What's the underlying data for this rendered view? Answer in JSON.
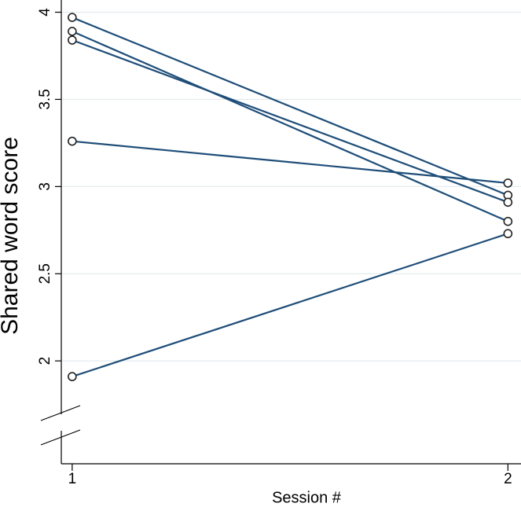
{
  "chart_data": {
    "type": "line",
    "x": [
      1,
      2
    ],
    "xlabel": "Session #",
    "ylabel": "Shared word score",
    "color": "#1f4e79",
    "series": [
      {
        "values": [
          3.97,
          2.95
        ]
      },
      {
        "values": [
          3.89,
          2.8
        ]
      },
      {
        "values": [
          3.84,
          2.91
        ]
      },
      {
        "values": [
          3.26,
          3.02
        ]
      },
      {
        "values": [
          1.91,
          2.73
        ]
      }
    ],
    "xlim": [
      0.975,
      2.03
    ],
    "xticks": [
      1,
      2
    ],
    "ylim": [
      1.41,
      4.07
    ],
    "yticks": [
      2,
      2.5,
      3,
      3.5,
      4
    ],
    "grid": true
  }
}
